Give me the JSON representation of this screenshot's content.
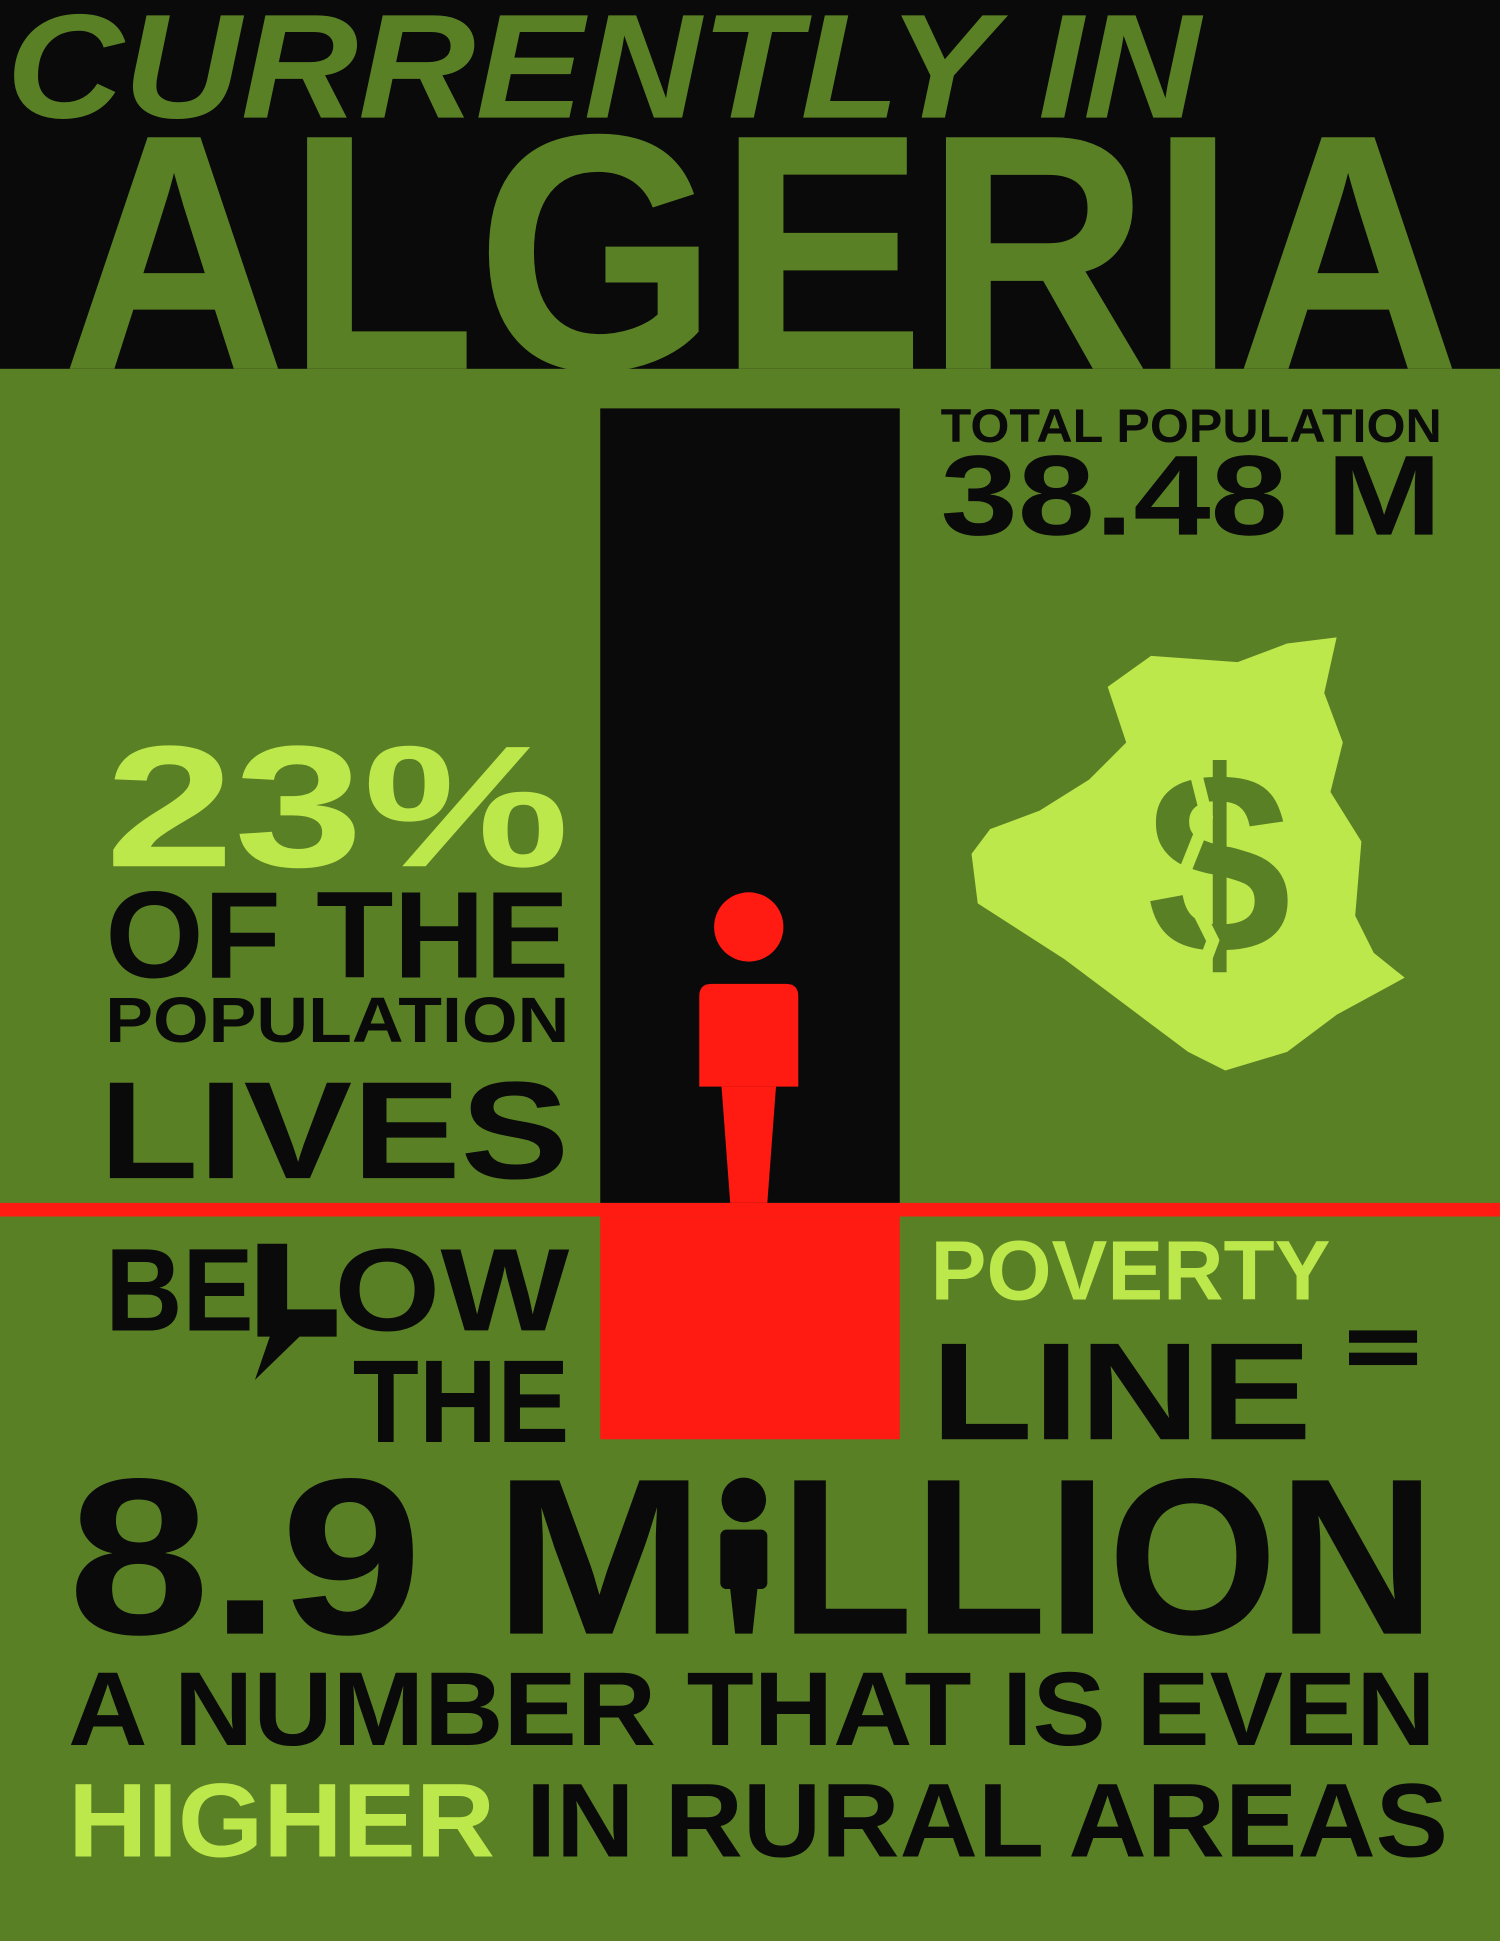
{
  "header": {
    "line1": "CURRENTLY IN",
    "line2": "ALGERIA"
  },
  "total_population": {
    "label": "TOTAL POPULATION",
    "value": "38.48 M"
  },
  "statement": {
    "percent": "23%",
    "line1": "OF THE",
    "line2": "POPULATION",
    "line3": "LIVES",
    "below_start": "BE",
    "below_end": "OW",
    "the": "THE",
    "poverty": "POVERTY",
    "line": "LINE"
  },
  "result": {
    "number_start": "8.9 M",
    "number_end": "LLION",
    "line1": "A NUMBER THAT IS EVEN",
    "highlight": "HIGHER",
    "line2_rest": "IN RURAL AREAS"
  }
}
